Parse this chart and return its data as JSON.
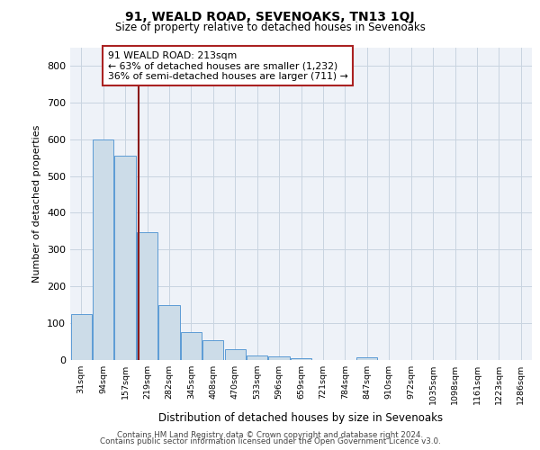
{
  "title1": "91, WEALD ROAD, SEVENOAKS, TN13 1QJ",
  "title2": "Size of property relative to detached houses in Sevenoaks",
  "xlabel": "Distribution of detached houses by size in Sevenoaks",
  "ylabel": "Number of detached properties",
  "bins": [
    "31sqm",
    "94sqm",
    "157sqm",
    "219sqm",
    "282sqm",
    "345sqm",
    "408sqm",
    "470sqm",
    "533sqm",
    "596sqm",
    "659sqm",
    "721sqm",
    "784sqm",
    "847sqm",
    "910sqm",
    "972sqm",
    "1035sqm",
    "1098sqm",
    "1161sqm",
    "1223sqm",
    "1286sqm"
  ],
  "bar_heights": [
    125,
    600,
    555,
    348,
    148,
    75,
    55,
    30,
    12,
    10,
    6,
    0,
    0,
    8,
    0,
    0,
    0,
    0,
    0,
    0,
    0
  ],
  "bar_color": "#ccdce8",
  "bar_edge_color": "#5b9bd5",
  "grid_color": "#c8d4e0",
  "background_color": "#eef2f8",
  "vline_x": 2.62,
  "vline_color": "#8b1a1a",
  "annotation_text": "91 WEALD ROAD: 213sqm\n← 63% of detached houses are smaller (1,232)\n36% of semi-detached houses are larger (711) →",
  "annotation_box_color": "white",
  "annotation_box_edge": "#aa2222",
  "ylim": [
    0,
    850
  ],
  "yticks": [
    0,
    100,
    200,
    300,
    400,
    500,
    600,
    700,
    800
  ],
  "ytick_labels": [
    "0",
    "100",
    "200",
    "300",
    "400",
    "500",
    "600",
    "700",
    "800"
  ],
  "footer1": "Contains HM Land Registry data © Crown copyright and database right 2024.",
  "footer2": "Contains public sector information licensed under the Open Government Licence v3.0."
}
